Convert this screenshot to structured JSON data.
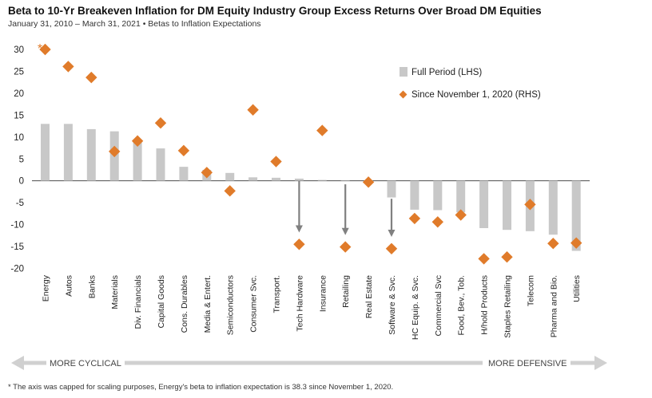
{
  "header": {
    "title": "Beta to 10-Yr Breakeven Inflation for DM Equity Industry Group Excess Returns Over Broad DM Equities",
    "subtitle": "January 31, 2010 – March 31, 2021 • Betas to Inflation Expectations"
  },
  "footnote": "* The axis was capped for scaling purposes, Energy's beta to inflation expectation is 38.3 since November 1, 2020.",
  "cap_marker": "*",
  "spectrum": {
    "left_label": "MORE CYCLICAL",
    "right_label": "MORE DEFENSIVE"
  },
  "colors": {
    "bar": "#c8c8c8",
    "marker": "#e07b2a",
    "arrow": "#808080",
    "spectrum_arrow": "#d0d0d0",
    "text": "#222222"
  },
  "chart_data": {
    "type": "bar",
    "categories": [
      "Energy",
      "Autos",
      "Banks",
      "Materials",
      "Div. Financials",
      "Capital Goods",
      "Cons. Durables",
      "Media & Entert.",
      "Semiconductors",
      "Consumer Svc.",
      "Transport.",
      "Tech Hardware",
      "Insurance",
      "Retailing",
      "Real Estate",
      "Software & Svc.",
      "HC Equip. & Svc.",
      "Commercial Svc",
      "Food, Bev., Tob.",
      "H/hold Products",
      "Staples Retailing",
      "Telecom",
      "Pharma and Bio.",
      "Utilities"
    ],
    "series": [
      {
        "name": "Full Period (LHS)",
        "type": "bar",
        "values": [
          13.0,
          13.0,
          11.8,
          11.3,
          9.5,
          7.4,
          3.2,
          2.5,
          1.8,
          0.8,
          0.7,
          0.5,
          0.2,
          0.0,
          -0.1,
          -3.8,
          -6.6,
          -6.7,
          -7.2,
          -10.8,
          -11.2,
          -11.5,
          -12.3,
          -16.0
        ]
      },
      {
        "name": "Since November 1, 2020 (RHS)",
        "type": "scatter",
        "values": [
          30,
          26.1,
          23.6,
          6.7,
          9.1,
          13.2,
          6.9,
          1.9,
          -2.3,
          16.2,
          4.4,
          -14.5,
          11.5,
          -15.1,
          -0.3,
          -15.5,
          -8.6,
          -9.4,
          -7.8,
          -17.8,
          -17.4,
          -5.4,
          -14.3,
          -14.2
        ]
      }
    ],
    "y_ticks": [
      30,
      25,
      20,
      15,
      10,
      5,
      0,
      -5,
      -10,
      -15,
      -20
    ],
    "ylim": [
      -20,
      30
    ],
    "arrows": [
      {
        "category": "Tech Hardware",
        "from": 0,
        "to": -11.8
      },
      {
        "category": "Retailing",
        "from": -0.8,
        "to": -12.4
      },
      {
        "category": "Software & Svc.",
        "from": -4.1,
        "to": -12.8
      }
    ],
    "legend_position": "top-right",
    "grid": false
  }
}
